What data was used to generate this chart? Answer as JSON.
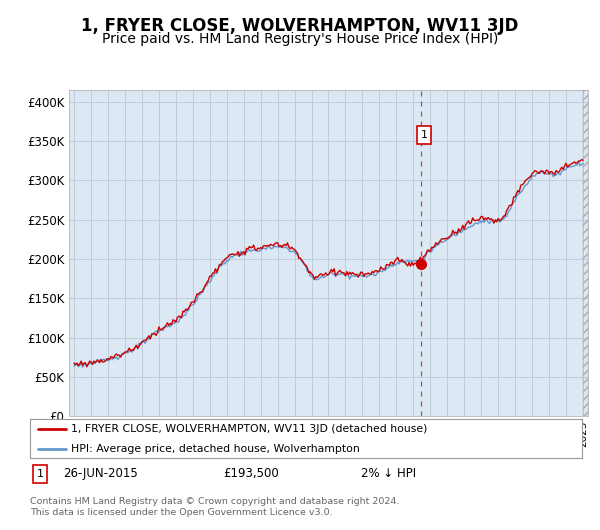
{
  "title": "1, FRYER CLOSE, WOLVERHAMPTON, WV11 3JD",
  "subtitle": "Price paid vs. HM Land Registry's House Price Index (HPI)",
  "ylabel_ticks": [
    "£0",
    "£50K",
    "£100K",
    "£150K",
    "£200K",
    "£250K",
    "£300K",
    "£350K",
    "£400K"
  ],
  "ytick_values": [
    0,
    50000,
    100000,
    150000,
    200000,
    250000,
    300000,
    350000,
    400000
  ],
  "ylim": [
    0,
    415000
  ],
  "xlim_start": 1994.7,
  "xlim_end": 2025.3,
  "sale_date": 2015.48,
  "sale_price": 193500,
  "sale_label": "1",
  "sale_annotation": "26-JUN-2015          £193,500          2% ↓ HPI",
  "legend_line1": "1, FRYER CLOSE, WOLVERHAMPTON, WV11 3JD (detached house)",
  "legend_line2": "HPI: Average price, detached house, Wolverhampton",
  "footer": "Contains HM Land Registry data © Crown copyright and database right 2024.\nThis data is licensed under the Open Government Licence v3.0.",
  "line_color_red": "#cc0000",
  "line_color_blue": "#6699cc",
  "plot_bg_color": "#dce9f5",
  "background_color": "#ffffff",
  "grid_color": "#b8c8d8",
  "title_fontsize": 12,
  "subtitle_fontsize": 10
}
